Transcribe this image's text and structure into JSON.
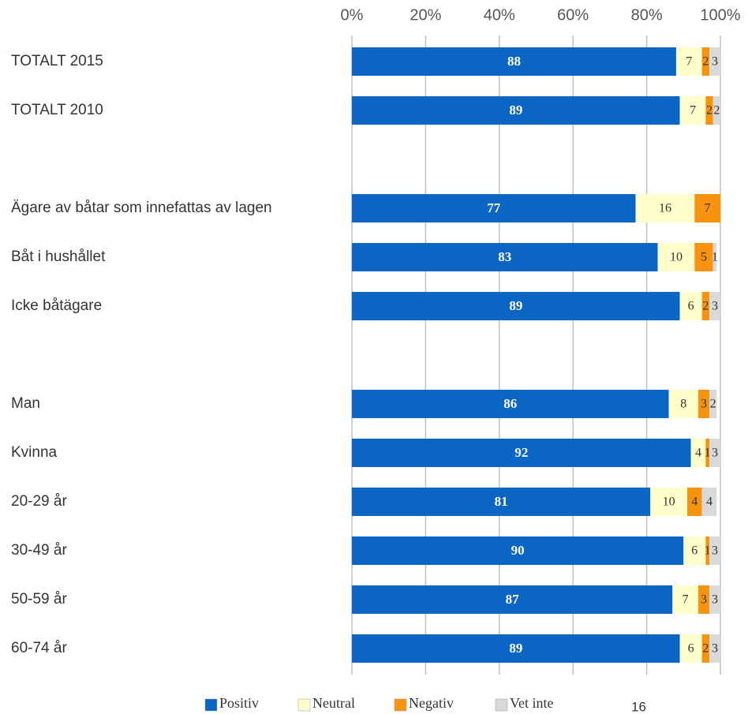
{
  "chart_data": {
    "type": "stacked_barh",
    "categories": [
      "TOTALT 2015",
      "TOTALT 2010",
      null,
      "Ägare av båtar som innefattas av lagen",
      "Båt i hushållet",
      "Icke båtägare",
      null,
      "Man",
      "Kvinna",
      "20-29 år",
      "30-49 år",
      "50-59 år",
      "60-74 år"
    ],
    "series": [
      {
        "name": "Positiv",
        "color": "#0b65c2",
        "values": [
          88,
          89,
          null,
          77,
          83,
          89,
          null,
          86,
          92,
          81,
          90,
          87,
          89
        ]
      },
      {
        "name": "Neutral",
        "color": "#ffffcc",
        "values": [
          7,
          7,
          null,
          16,
          10,
          6,
          null,
          8,
          4,
          10,
          6,
          7,
          6
        ]
      },
      {
        "name": "Negativ",
        "color": "#f7930f",
        "values": [
          2,
          2,
          null,
          7,
          5,
          2,
          null,
          3,
          1,
          4,
          1,
          3,
          2
        ]
      },
      {
        "name": "Vet inte",
        "color": "#d9d9d9",
        "values": [
          3,
          2,
          null,
          null,
          1,
          3,
          null,
          2,
          3,
          4,
          3,
          3,
          3
        ]
      }
    ],
    "xlim": [
      0,
      100
    ],
    "xticks": [
      {
        "value": 0,
        "label": "0%"
      },
      {
        "value": 20,
        "label": "20%"
      },
      {
        "value": 40,
        "label": "40%"
      },
      {
        "value": 60,
        "label": "60%"
      },
      {
        "value": 80,
        "label": "80%"
      },
      {
        "value": 100,
        "label": "100%"
      }
    ],
    "grid": true,
    "legend": "bottom",
    "page_number": "16"
  }
}
